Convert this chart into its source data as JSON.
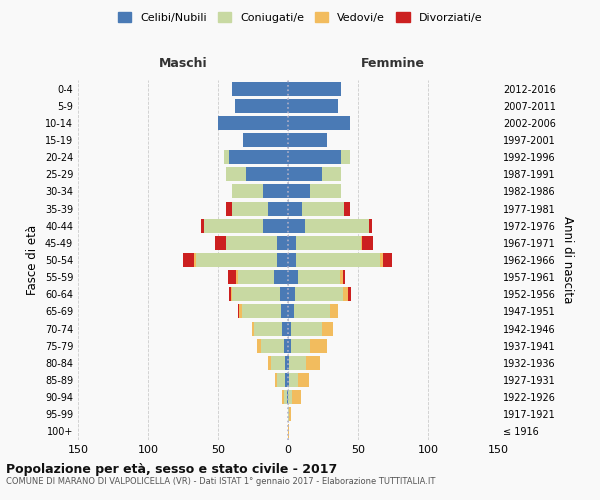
{
  "age_groups": [
    "100+",
    "95-99",
    "90-94",
    "85-89",
    "80-84",
    "75-79",
    "70-74",
    "65-69",
    "60-64",
    "55-59",
    "50-54",
    "45-49",
    "40-44",
    "35-39",
    "30-34",
    "25-29",
    "20-24",
    "15-19",
    "10-14",
    "5-9",
    "0-4"
  ],
  "birth_years": [
    "≤ 1916",
    "1917-1921",
    "1922-1926",
    "1927-1931",
    "1932-1936",
    "1937-1941",
    "1942-1946",
    "1947-1951",
    "1952-1956",
    "1957-1961",
    "1962-1966",
    "1967-1971",
    "1972-1976",
    "1977-1981",
    "1982-1986",
    "1987-1991",
    "1992-1996",
    "1997-2001",
    "2002-2006",
    "2007-2011",
    "2012-2016"
  ],
  "male": {
    "celibi": [
      0,
      0,
      1,
      2,
      2,
      3,
      4,
      5,
      6,
      10,
      8,
      8,
      18,
      14,
      18,
      30,
      42,
      32,
      50,
      38,
      40
    ],
    "coniugati": [
      0,
      0,
      2,
      6,
      10,
      16,
      20,
      28,
      34,
      26,
      58,
      36,
      42,
      26,
      22,
      14,
      4,
      0,
      0,
      0,
      0
    ],
    "vedovi": [
      0,
      0,
      1,
      1,
      2,
      3,
      2,
      2,
      1,
      1,
      1,
      0,
      0,
      0,
      0,
      0,
      0,
      0,
      0,
      0,
      0
    ],
    "divorziati": [
      0,
      0,
      0,
      0,
      0,
      0,
      0,
      1,
      1,
      6,
      8,
      8,
      2,
      4,
      0,
      0,
      0,
      0,
      0,
      0,
      0
    ]
  },
  "female": {
    "nubili": [
      0,
      0,
      0,
      1,
      1,
      2,
      2,
      4,
      5,
      7,
      6,
      6,
      12,
      10,
      16,
      24,
      38,
      28,
      44,
      36,
      38
    ],
    "coniugate": [
      0,
      1,
      3,
      6,
      12,
      14,
      22,
      26,
      34,
      30,
      60,
      46,
      46,
      30,
      22,
      14,
      6,
      0,
      0,
      0,
      0
    ],
    "vedove": [
      1,
      1,
      6,
      8,
      10,
      12,
      8,
      6,
      4,
      2,
      2,
      1,
      0,
      0,
      0,
      0,
      0,
      0,
      0,
      0,
      0
    ],
    "divorziate": [
      0,
      0,
      0,
      0,
      0,
      0,
      0,
      0,
      2,
      2,
      6,
      8,
      2,
      4,
      0,
      0,
      0,
      0,
      0,
      0,
      0
    ]
  },
  "colors": {
    "celibi": "#4a7ab5",
    "coniugati": "#c8d9a2",
    "vedovi": "#f2bc5e",
    "divorziati": "#cc2020"
  },
  "xlim": 150,
  "title": "Popolazione per età, sesso e stato civile - 2017",
  "subtitle": "COMUNE DI MARANO DI VALPOLICELLA (VR) - Dati ISTAT 1° gennaio 2017 - Elaborazione TUTTITALIA.IT",
  "ylabel": "Fasce di età",
  "ylabel_right": "Anni di nascita",
  "xlabel_left": "Maschi",
  "xlabel_right": "Femmine",
  "bg_color": "#f9f9f9",
  "grid_color": "#cccccc"
}
